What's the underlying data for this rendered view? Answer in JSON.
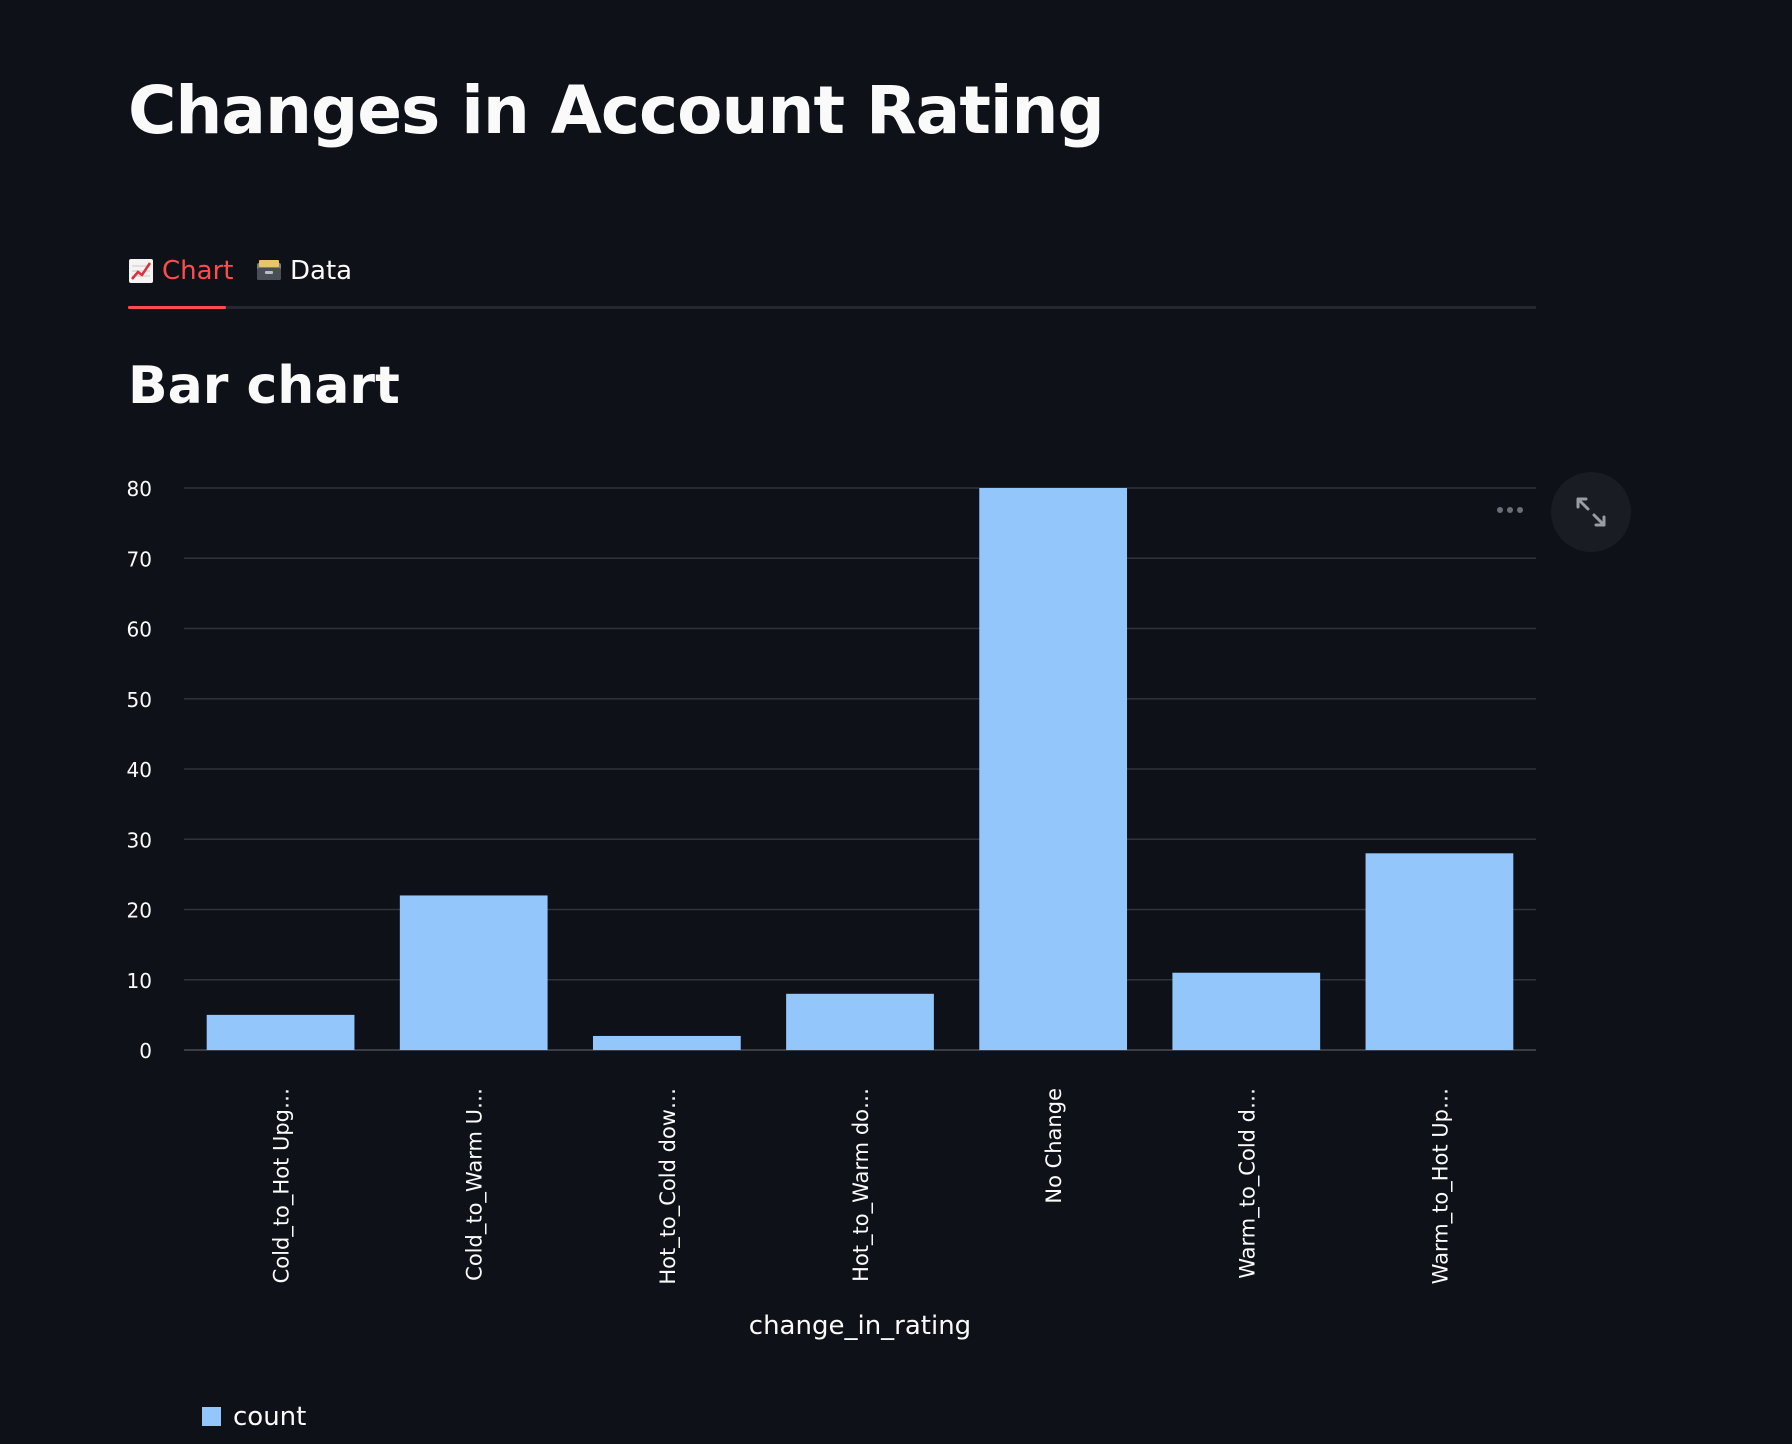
{
  "page": {
    "title": "Changes in Account Rating"
  },
  "tabs": [
    {
      "label": "Chart",
      "icon": "chart-increasing-icon",
      "active": true
    },
    {
      "label": "Data",
      "icon": "card-file-box-icon",
      "active": false
    }
  ],
  "section": {
    "title": "Bar chart"
  },
  "toolbar": {
    "more_icon": "more-horizontal-icon",
    "fullscreen_icon": "fullscreen-expand-icon"
  },
  "colors": {
    "background": "#0e1117",
    "accent": "#ff4b4b",
    "bar": "#93c6fa"
  },
  "chart_data": {
    "type": "bar",
    "categories": [
      "Cold_to_Hot Upg…",
      "Cold_to_Warm U…",
      "Hot_to_Cold dow…",
      "Hot_to_Warm do…",
      "No Change",
      "Warm_to_Cold d…",
      "Warm_to_Hot Up…"
    ],
    "series": [
      {
        "name": "count",
        "values": [
          5,
          22,
          2,
          8,
          80,
          11,
          28
        ]
      }
    ],
    "xlabel": "change_in_rating",
    "ylabel": "",
    "ylim": [
      0,
      80
    ],
    "yticks": [
      0,
      10,
      20,
      30,
      40,
      50,
      60,
      70,
      80
    ],
    "grid": true,
    "legend": "bottom-left"
  }
}
